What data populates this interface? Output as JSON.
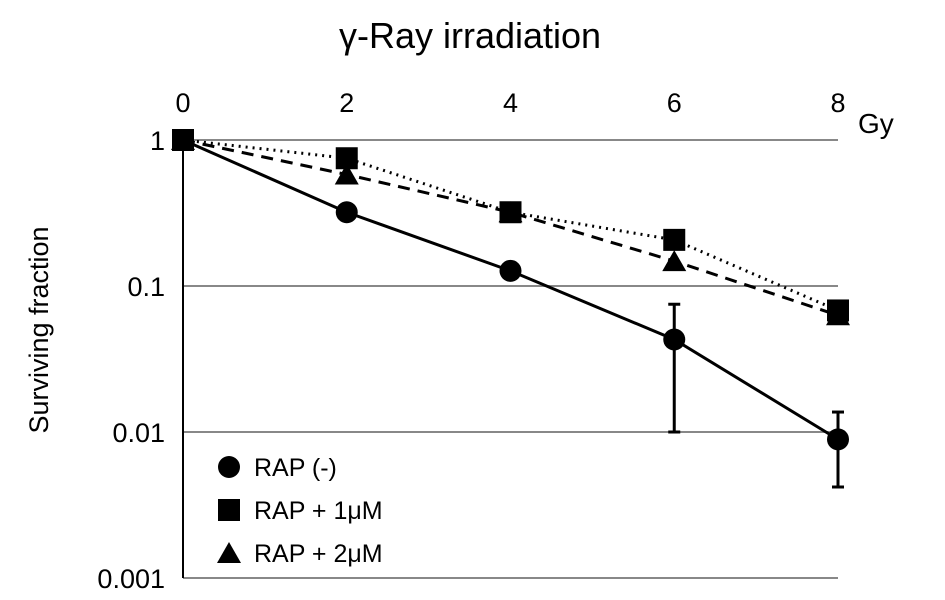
{
  "chart_data": {
    "type": "line",
    "title": "γ-Ray irradiation",
    "xlabel": "Gy",
    "ylabel": "Surviving fraction",
    "x": [
      0,
      2,
      4,
      6,
      8
    ],
    "xticks": [
      "0",
      "2",
      "4",
      "6",
      "8"
    ],
    "yticks": [
      "1",
      "0.1",
      "0.01",
      "0.001"
    ],
    "yscale": "log",
    "ylim": [
      0.001,
      1
    ],
    "xlim": [
      0,
      8
    ],
    "grid": "horizontal",
    "legend_position": "bottom-left",
    "series": [
      {
        "name": "RAP (-)",
        "marker": "circle",
        "line": "solid",
        "values": [
          1,
          0.32,
          0.127,
          0.043,
          0.0089
        ],
        "err_low": [
          null,
          null,
          null,
          0.01,
          0.0042
        ],
        "err_high": [
          null,
          null,
          null,
          0.075,
          0.0137
        ]
      },
      {
        "name": "RAP + 1μM",
        "marker": "square",
        "line": "dotted",
        "values": [
          1,
          0.75,
          0.32,
          0.207,
          0.068
        ]
      },
      {
        "name": "RAP + 2μM",
        "marker": "triangle",
        "line": "dashed",
        "values": [
          1,
          0.58,
          0.32,
          0.148,
          0.063
        ]
      }
    ]
  }
}
